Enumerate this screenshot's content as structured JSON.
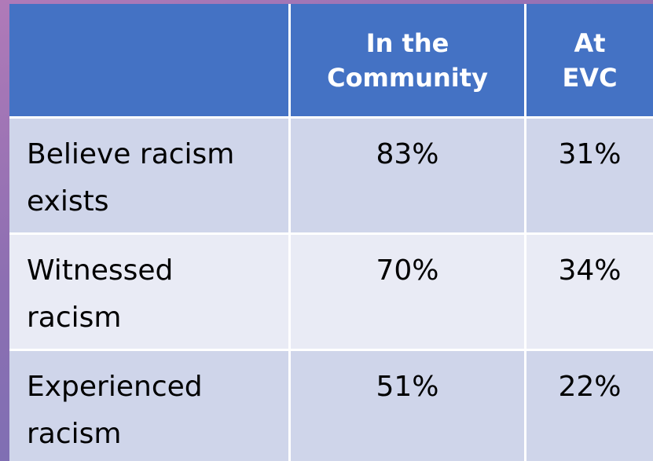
{
  "table": {
    "header": [
      "In the Community",
      "At EVC"
    ],
    "rows": [
      [
        "Believe racism exists",
        "83%",
        "31%"
      ],
      [
        "Witnessed racism",
        "70%",
        "34%"
      ],
      [
        "Experienced racism",
        "51%",
        "22%"
      ]
    ]
  }
}
